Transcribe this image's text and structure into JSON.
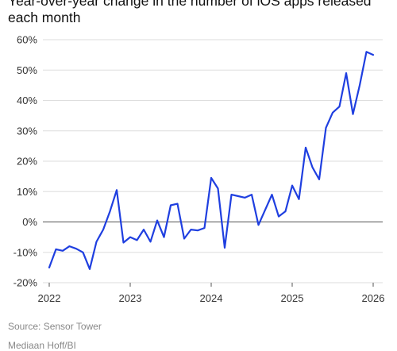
{
  "chart_data": {
    "type": "line",
    "title": "Year-over-year change in the number of iOS apps released each month",
    "xlabel": "",
    "ylabel": "",
    "ylim": [
      -20,
      60
    ],
    "xlim": [
      "2022-01",
      "2026-02"
    ],
    "yticks": [
      "60%",
      "50%",
      "40%",
      "30%",
      "20%",
      "10%",
      "0%",
      "-10%",
      "-20%"
    ],
    "ytick_values": [
      60,
      50,
      40,
      30,
      20,
      10,
      0,
      -10,
      -20
    ],
    "xticks": [
      "2022",
      "2023",
      "2024",
      "2025",
      "2026"
    ],
    "grid": true,
    "color": "#1f3fe0",
    "series": [
      {
        "x": [
          "2022-01",
          "2022-02",
          "2022-03",
          "2022-04",
          "2022-05",
          "2022-06",
          "2022-07",
          "2022-08",
          "2022-09",
          "2022-10",
          "2022-11",
          "2022-12",
          "2023-01",
          "2023-02",
          "2023-03",
          "2023-04",
          "2023-05",
          "2023-06",
          "2023-07",
          "2023-08",
          "2023-09",
          "2023-10",
          "2023-11",
          "2023-12",
          "2024-01",
          "2024-02",
          "2024-03",
          "2024-04",
          "2024-05",
          "2024-06",
          "2024-07",
          "2024-08",
          "2024-09",
          "2024-10",
          "2024-11",
          "2024-12",
          "2025-01",
          "2025-02",
          "2025-03",
          "2025-04",
          "2025-05",
          "2025-06",
          "2025-07",
          "2025-08",
          "2025-09",
          "2025-10",
          "2025-11",
          "2025-12",
          "2026-01"
        ],
        "values": [
          -15,
          -9,
          -9.5,
          -8,
          -8.8,
          -10,
          -15.5,
          -6.5,
          -2.5,
          3.5,
          10.5,
          -6.8,
          -5,
          -6,
          -2.5,
          -6.5,
          0.5,
          -5,
          5.5,
          6,
          -5.5,
          -2.5,
          -2.8,
          -2,
          14.5,
          11,
          -8.5,
          9,
          8.5,
          8,
          9,
          -1,
          4,
          9,
          1.8,
          3.5,
          12,
          7.5,
          24.5,
          18,
          14,
          31,
          36,
          38,
          49,
          35.5,
          45,
          56,
          55
        ]
      }
    ]
  },
  "source": "Source: Sensor Tower",
  "credit": "Mediaan Hoff/BI"
}
